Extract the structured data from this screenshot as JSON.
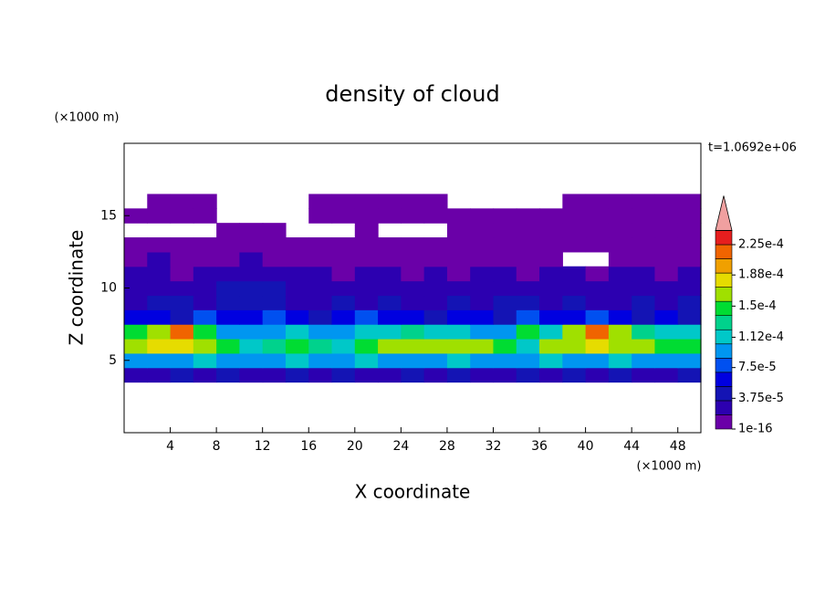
{
  "chart_data": {
    "type": "contour",
    "title": "density of cloud",
    "xlabel": "X coordinate",
    "ylabel": "Z coordinate",
    "xunit": "(×1000 m)",
    "yunit": "(×1000 m)",
    "time_label": "t=1.0692e+06",
    "xlim": [
      0,
      50
    ],
    "ylim": [
      0,
      20
    ],
    "xticks": [
      4,
      8,
      12,
      16,
      20,
      24,
      28,
      32,
      36,
      40,
      44,
      48
    ],
    "yticks": [
      5,
      10,
      15
    ],
    "x": [
      1,
      3,
      5,
      7,
      9,
      11,
      13,
      15,
      17,
      19,
      21,
      23,
      25,
      27,
      29,
      31,
      33,
      35,
      37,
      39,
      41,
      43,
      45,
      47,
      49
    ],
    "y": [
      4,
      5,
      6,
      7,
      8,
      9,
      10,
      11,
      12,
      13,
      14,
      15,
      16
    ],
    "z": [
      [
        3e-05,
        3e-05,
        4e-05,
        3e-05,
        4e-05,
        3e-05,
        3e-05,
        4e-05,
        3e-05,
        4e-05,
        3e-05,
        3e-05,
        4e-05,
        3e-05,
        4e-05,
        3e-05,
        3e-05,
        4e-05,
        3e-05,
        4e-05,
        3e-05,
        4e-05,
        3e-05,
        3e-05,
        4e-05
      ],
      [
        9e-05,
        0.0001,
        9e-05,
        0.00011,
        0.0001,
        9e-05,
        0.0001,
        0.00011,
        9e-05,
        0.0001,
        0.00011,
        0.0001,
        9e-05,
        0.0001,
        0.00011,
        9e-05,
        0.0001,
        0.0001,
        0.00011,
        9e-05,
        0.0001,
        0.00011,
        0.0001,
        9e-05,
        0.0001
      ],
      [
        0.00016,
        0.00018,
        0.00018,
        0.00017,
        0.00015,
        0.00012,
        0.00013,
        0.00014,
        0.00013,
        0.00011,
        0.00015,
        0.00016,
        0.00017,
        0.00016,
        0.00017,
        0.00016,
        0.00015,
        0.00012,
        0.00016,
        0.00017,
        0.00018,
        0.00017,
        0.00016,
        0.00015,
        0.00014
      ],
      [
        0.00014,
        0.00017,
        0.00021,
        0.00015,
        0.0001,
        9e-05,
        0.0001,
        0.00011,
        9e-05,
        0.0001,
        0.00011,
        0.00012,
        0.00013,
        0.00012,
        0.00011,
        0.0001,
        9e-05,
        0.00014,
        0.00012,
        0.00017,
        0.00021,
        0.00016,
        0.00013,
        0.00012,
        0.00011
      ],
      [
        6e-05,
        6e-05,
        5e-05,
        7e-05,
        6e-05,
        6e-05,
        7e-05,
        6e-05,
        5e-05,
        6e-05,
        7e-05,
        6e-05,
        6e-05,
        5e-05,
        6e-05,
        6e-05,
        5e-05,
        7e-05,
        6e-05,
        6e-05,
        7e-05,
        6e-05,
        5e-05,
        6e-05,
        5e-05
      ],
      [
        3e-05,
        4e-05,
        4e-05,
        3e-05,
        4e-05,
        5e-05,
        4e-05,
        3e-05,
        3e-05,
        4e-05,
        3e-05,
        4e-05,
        3e-05,
        3e-05,
        4e-05,
        3e-05,
        5e-05,
        4e-05,
        3e-05,
        4e-05,
        3e-05,
        3e-05,
        4e-05,
        3e-05,
        4e-05
      ],
      [
        2e-05,
        3e-05,
        2e-05,
        3e-05,
        4e-05,
        5e-05,
        4e-05,
        3e-05,
        2e-05,
        2e-05,
        3e-05,
        2e-05,
        2e-05,
        3e-05,
        2e-05,
        2e-05,
        3e-05,
        2e-05,
        3e-05,
        2e-05,
        2e-05,
        3e-05,
        2e-05,
        3e-05,
        2e-05
      ],
      [
        2e-05,
        2e-05,
        1e-05,
        2e-05,
        2e-05,
        3e-05,
        3e-05,
        2e-05,
        2e-05,
        1e-05,
        2e-05,
        2e-05,
        1e-05,
        2e-05,
        1e-05,
        2e-05,
        2e-05,
        1e-05,
        2e-05,
        2e-05,
        1e-05,
        2e-05,
        2e-05,
        1e-05,
        2e-05
      ],
      [
        1e-05,
        2e-05,
        1e-05,
        1e-05,
        1e-05,
        2e-05,
        1e-05,
        1e-05,
        1e-05,
        1e-05,
        1e-05,
        1e-05,
        1e-05,
        1e-05,
        1e-05,
        1e-05,
        1e-05,
        1e-05,
        1e-05,
        null,
        null,
        1e-05,
        1e-05,
        1e-05,
        1e-05
      ],
      [
        1e-05,
        1e-05,
        1e-05,
        1e-05,
        1e-05,
        1e-05,
        1e-05,
        1e-05,
        1e-05,
        1e-05,
        1e-05,
        1e-05,
        1e-05,
        1e-05,
        1e-05,
        1e-05,
        1e-05,
        1e-05,
        1e-05,
        1e-05,
        1e-05,
        1e-05,
        1e-05,
        1e-05,
        1e-05
      ],
      [
        null,
        null,
        null,
        null,
        1e-05,
        1e-05,
        1e-05,
        null,
        null,
        null,
        1e-05,
        null,
        null,
        null,
        1e-05,
        1e-05,
        1e-05,
        1e-05,
        1e-05,
        1e-05,
        1e-05,
        1e-05,
        1e-05,
        1e-05,
        1e-05
      ],
      [
        1e-05,
        1e-05,
        1e-05,
        1e-05,
        null,
        null,
        null,
        null,
        1e-05,
        1e-05,
        1e-05,
        1e-05,
        1e-05,
        1e-05,
        1e-05,
        1e-05,
        1e-05,
        1e-05,
        1e-05,
        1e-05,
        1e-05,
        1e-05,
        1e-05,
        1e-05,
        1e-05
      ],
      [
        null,
        1e-05,
        1e-05,
        1e-05,
        null,
        null,
        null,
        null,
        1e-05,
        1e-05,
        1e-05,
        1e-05,
        1e-05,
        1e-05,
        null,
        null,
        null,
        null,
        null,
        1e-05,
        1e-05,
        1e-05,
        1e-05,
        1e-05,
        1e-05
      ]
    ],
    "clim": [
      1e-16,
      0.000225
    ],
    "colors": [
      "#6a00a8",
      "#2c00b0",
      "#1414b4",
      "#0000e0",
      "#0050f0",
      "#0096f0",
      "#00c8c8",
      "#00d28c",
      "#00dc32",
      "#a0e000",
      "#e6dc00",
      "#f0a000",
      "#f06400",
      "#e61e1e"
    ],
    "extend_color": "#f0a0a0",
    "cticks": [
      1e-16,
      {
        "value": 3.75e-05,
        "label": "3.75e-5"
      },
      {
        "value": 7.5e-05,
        "label": "7.5e-5"
      },
      {
        "value": 0.000112,
        "label": "1.12e-4"
      },
      {
        "value": 0.00015,
        "label": "1.5e-4"
      },
      {
        "value": 0.000188,
        "label": "1.88e-4"
      },
      {
        "value": 0.000225,
        "label": "2.25e-4"
      }
    ]
  }
}
